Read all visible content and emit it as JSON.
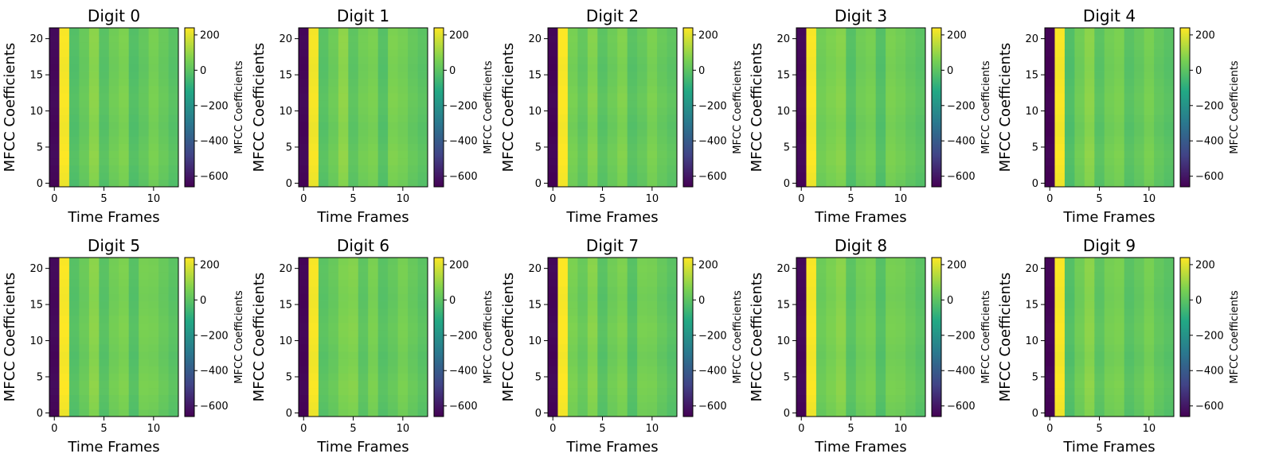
{
  "figure": {
    "layout": {
      "rows": 2,
      "cols": 5
    },
    "colormap": "viridis",
    "colormap_stops": [
      "#440154",
      "#414487",
      "#2a788e",
      "#22a884",
      "#7ad151",
      "#fde725"
    ]
  },
  "chart_data": [
    {
      "type": "heatmap",
      "title": "Digit 0",
      "xlabel": "Time Frames",
      "ylabel": "MFCC Coefficients",
      "colorbar_label": "MFCC Coefficients",
      "x_ticks": [
        0,
        5,
        10
      ],
      "y_ticks": [
        0,
        5,
        10,
        15,
        20
      ],
      "colorbar_ticks": [
        200,
        0,
        -200,
        -400,
        -600
      ],
      "colorbar_tick_labels": [
        "200",
        "0",
        "−200",
        "−400",
        "−600"
      ],
      "xlim": [
        -0.5,
        12.5
      ],
      "ylim": [
        -0.5,
        21.5
      ],
      "clim": [
        -660,
        240
      ],
      "n_frames": 13,
      "n_coefficients": 22,
      "frame_values": [
        -640,
        230,
        -20,
        20,
        80,
        -10,
        35,
        60,
        -20,
        10,
        50,
        20,
        -10
      ],
      "coefficient_offsets": [
        -15,
        -5,
        0,
        8,
        10,
        5,
        0,
        -5,
        -8,
        -3,
        2,
        6,
        8,
        5,
        0,
        -3,
        -6,
        -4,
        0,
        4,
        6,
        3
      ]
    },
    {
      "type": "heatmap",
      "title": "Digit 1",
      "xlabel": "Time Frames",
      "ylabel": "MFCC Coefficients",
      "colorbar_label": "MFCC Coefficients",
      "x_ticks": [
        0,
        5,
        10
      ],
      "y_ticks": [
        0,
        5,
        10,
        15,
        20
      ],
      "colorbar_ticks": [
        200,
        0,
        -200,
        -400,
        -600
      ],
      "colorbar_tick_labels": [
        "200",
        "0",
        "−200",
        "−400",
        "−600"
      ],
      "xlim": [
        -0.5,
        12.5
      ],
      "ylim": [
        -0.5,
        21.5
      ],
      "clim": [
        -660,
        240
      ],
      "n_frames": 13,
      "n_coefficients": 22,
      "frame_values": [
        -645,
        225,
        -10,
        30,
        85,
        0,
        40,
        55,
        -15,
        60,
        45,
        15,
        -5
      ],
      "coefficient_offsets": [
        -12,
        -4,
        2,
        8,
        9,
        4,
        -2,
        -6,
        -8,
        -2,
        3,
        7,
        8,
        4,
        0,
        -4,
        -6,
        -3,
        1,
        5,
        6,
        2
      ]
    },
    {
      "type": "heatmap",
      "title": "Digit 2",
      "xlabel": "Time Frames",
      "ylabel": "MFCC Coefficients",
      "colorbar_label": "MFCC Coefficients",
      "x_ticks": [
        0,
        5,
        10
      ],
      "y_ticks": [
        0,
        5,
        10,
        15,
        20
      ],
      "colorbar_ticks": [
        200,
        0,
        -200,
        -400,
        -600
      ],
      "colorbar_tick_labels": [
        "200",
        "0",
        "−200",
        "−400",
        "−600"
      ],
      "xlim": [
        -0.5,
        12.5
      ],
      "ylim": [
        -0.5,
        21.5
      ],
      "clim": [
        -660,
        240
      ],
      "n_frames": 13,
      "n_coefficients": 22,
      "frame_values": [
        -650,
        235,
        50,
        10,
        70,
        -5,
        30,
        65,
        -10,
        15,
        55,
        20,
        0
      ],
      "coefficient_offsets": [
        -10,
        -6,
        0,
        6,
        10,
        6,
        0,
        -6,
        -10,
        -4,
        2,
        8,
        10,
        4,
        -2,
        -4,
        -8,
        -4,
        2,
        4,
        8,
        4
      ]
    },
    {
      "type": "heatmap",
      "title": "Digit 3",
      "xlabel": "Time Frames",
      "ylabel": "MFCC Coefficients",
      "colorbar_label": "MFCC Coefficients",
      "x_ticks": [
        0,
        5,
        10
      ],
      "y_ticks": [
        0,
        5,
        10,
        15,
        20
      ],
      "colorbar_ticks": [
        200,
        0,
        -200,
        -400,
        -600
      ],
      "colorbar_tick_labels": [
        "200",
        "0",
        "−200",
        "−400",
        "−600"
      ],
      "xlim": [
        -0.5,
        12.5
      ],
      "ylim": [
        -0.5,
        21.5
      ],
      "clim": [
        -660,
        240
      ],
      "n_frames": 13,
      "n_coefficients": 22,
      "frame_values": [
        -640,
        230,
        40,
        60,
        75,
        -15,
        35,
        50,
        -20,
        55,
        40,
        15,
        -5
      ],
      "coefficient_offsets": [
        -14,
        -6,
        2,
        8,
        8,
        4,
        0,
        -4,
        -8,
        -4,
        2,
        6,
        8,
        6,
        2,
        -2,
        -6,
        -4,
        0,
        4,
        6,
        2
      ]
    },
    {
      "type": "heatmap",
      "title": "Digit 4",
      "xlabel": "Time Frames",
      "ylabel": "MFCC Coefficients",
      "colorbar_label": "MFCC Coefficients",
      "x_ticks": [
        0,
        5,
        10
      ],
      "y_ticks": [
        0,
        5,
        10,
        15,
        20
      ],
      "colorbar_ticks": [
        200,
        0,
        -200,
        -400,
        -600
      ],
      "colorbar_tick_labels": [
        "200",
        "0",
        "−200",
        "−400",
        "−600"
      ],
      "xlim": [
        -0.5,
        12.5
      ],
      "ylim": [
        -0.5,
        21.5
      ],
      "clim": [
        -660,
        240
      ],
      "n_frames": 13,
      "n_coefficients": 22,
      "frame_values": [
        -655,
        230,
        -25,
        35,
        80,
        -5,
        40,
        55,
        -10,
        15,
        50,
        10,
        -10
      ],
      "coefficient_offsets": [
        -12,
        -4,
        0,
        6,
        10,
        6,
        0,
        -6,
        -8,
        -2,
        4,
        6,
        8,
        4,
        0,
        -4,
        -6,
        -4,
        0,
        4,
        6,
        4
      ]
    },
    {
      "type": "heatmap",
      "title": "Digit 5",
      "xlabel": "Time Frames",
      "ylabel": "MFCC Coefficients",
      "colorbar_label": "MFCC Coefficients",
      "x_ticks": [
        0,
        5,
        10
      ],
      "y_ticks": [
        0,
        5,
        10,
        15,
        20
      ],
      "colorbar_ticks": [
        200,
        0,
        -200,
        -400,
        -600
      ],
      "colorbar_tick_labels": [
        "200",
        "0",
        "−200",
        "−400",
        "−600"
      ],
      "xlim": [
        -0.5,
        12.5
      ],
      "ylim": [
        -0.5,
        21.5
      ],
      "clim": [
        -660,
        240
      ],
      "n_frames": 13,
      "n_coefficients": 22,
      "frame_values": [
        -640,
        232,
        -15,
        25,
        80,
        -10,
        40,
        60,
        -15,
        50,
        45,
        20,
        -5
      ],
      "coefficient_offsets": [
        -15,
        -5,
        0,
        8,
        10,
        5,
        0,
        -5,
        -8,
        -3,
        2,
        6,
        8,
        5,
        0,
        -3,
        -6,
        -4,
        0,
        4,
        6,
        3
      ]
    },
    {
      "type": "heatmap",
      "title": "Digit 6",
      "xlabel": "Time Frames",
      "ylabel": "MFCC Coefficients",
      "colorbar_label": "MFCC Coefficients",
      "x_ticks": [
        0,
        5,
        10
      ],
      "y_ticks": [
        0,
        5,
        10,
        15,
        20
      ],
      "colorbar_ticks": [
        200,
        0,
        -200,
        -400,
        -600
      ],
      "colorbar_tick_labels": [
        "200",
        "0",
        "−200",
        "−400",
        "−600"
      ],
      "xlim": [
        -0.5,
        12.5
      ],
      "ylim": [
        -0.5,
        21.5
      ],
      "clim": [
        -660,
        240
      ],
      "n_frames": 13,
      "n_coefficients": 22,
      "frame_values": [
        -650,
        228,
        -5,
        20,
        60,
        70,
        0,
        55,
        -10,
        15,
        50,
        20,
        -5
      ],
      "coefficient_offsets": [
        -12,
        -4,
        2,
        8,
        9,
        4,
        -2,
        -6,
        -8,
        -2,
        3,
        7,
        8,
        4,
        0,
        -4,
        -6,
        -3,
        1,
        5,
        6,
        2
      ]
    },
    {
      "type": "heatmap",
      "title": "Digit 7",
      "xlabel": "Time Frames",
      "ylabel": "MFCC Coefficients",
      "colorbar_label": "MFCC Coefficients",
      "x_ticks": [
        0,
        5,
        10
      ],
      "y_ticks": [
        0,
        5,
        10,
        15,
        20
      ],
      "colorbar_ticks": [
        200,
        0,
        -200,
        -400,
        -600
      ],
      "colorbar_tick_labels": [
        "200",
        "0",
        "−200",
        "−400",
        "−600"
      ],
      "xlim": [
        -0.5,
        12.5
      ],
      "ylim": [
        -0.5,
        21.5
      ],
      "clim": [
        -660,
        240
      ],
      "n_frames": 13,
      "n_coefficients": 22,
      "frame_values": [
        -645,
        235,
        55,
        20,
        75,
        -10,
        35,
        60,
        -15,
        50,
        45,
        15,
        -10
      ],
      "coefficient_offsets": [
        -10,
        -6,
        0,
        6,
        10,
        6,
        0,
        -6,
        -10,
        -4,
        2,
        8,
        10,
        4,
        -2,
        -4,
        -8,
        -4,
        2,
        4,
        8,
        4
      ]
    },
    {
      "type": "heatmap",
      "title": "Digit 8",
      "xlabel": "Time Frames",
      "ylabel": "MFCC Coefficients",
      "colorbar_label": "MFCC Coefficients",
      "x_ticks": [
        0,
        5,
        10
      ],
      "y_ticks": [
        0,
        5,
        10,
        15,
        20
      ],
      "colorbar_ticks": [
        200,
        0,
        -200,
        -400,
        -600
      ],
      "colorbar_tick_labels": [
        "200",
        "0",
        "−200",
        "−400",
        "−600"
      ],
      "xlim": [
        -0.5,
        12.5
      ],
      "ylim": [
        -0.5,
        21.5
      ],
      "clim": [
        -660,
        240
      ],
      "n_frames": 13,
      "n_coefficients": 22,
      "frame_values": [
        -640,
        230,
        30,
        55,
        80,
        -5,
        40,
        55,
        -15,
        50,
        45,
        20,
        -5
      ],
      "coefficient_offsets": [
        -14,
        -6,
        2,
        8,
        8,
        4,
        0,
        -4,
        -8,
        -4,
        2,
        6,
        8,
        6,
        2,
        -2,
        -6,
        -4,
        0,
        4,
        6,
        2
      ]
    },
    {
      "type": "heatmap",
      "title": "Digit 9",
      "xlabel": "Time Frames",
      "ylabel": "MFCC Coefficients",
      "colorbar_label": "MFCC Coefficients",
      "x_ticks": [
        0,
        5,
        10
      ],
      "y_ticks": [
        0,
        5,
        10,
        15,
        20
      ],
      "colorbar_ticks": [
        200,
        0,
        -200,
        -400,
        -600
      ],
      "colorbar_tick_labels": [
        "200",
        "0",
        "−200",
        "−400",
        "−600"
      ],
      "xlim": [
        -0.5,
        12.5
      ],
      "ylim": [
        -0.5,
        21.5
      ],
      "clim": [
        -660,
        240
      ],
      "n_frames": 13,
      "n_coefficients": 22,
      "frame_values": [
        -650,
        230,
        -20,
        35,
        80,
        0,
        45,
        55,
        -10,
        15,
        50,
        10,
        -10
      ],
      "coefficient_offsets": [
        -12,
        -4,
        0,
        6,
        10,
        6,
        0,
        -6,
        -8,
        -2,
        4,
        6,
        8,
        4,
        0,
        -4,
        -6,
        -4,
        0,
        4,
        6,
        4
      ]
    }
  ]
}
